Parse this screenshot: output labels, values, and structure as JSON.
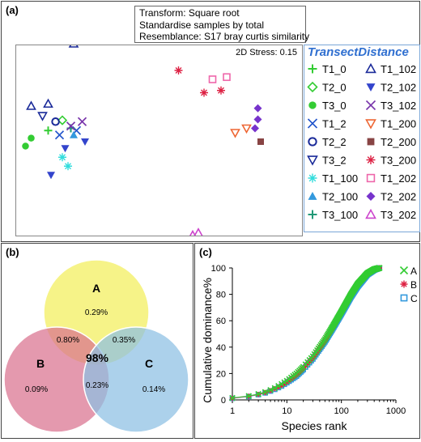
{
  "panels": {
    "a": {
      "label": "(a)",
      "info_lines": [
        "Transform: Square root",
        "Standardise samples by total",
        "Resemblance: S17 bray curtis similarity"
      ],
      "stress": "2D Stress: 0.15",
      "legend_title": "TransectDistance"
    },
    "b": {
      "label": "(b)",
      "sets": [
        {
          "name": "A",
          "color": "#f3ef5a",
          "value": "0.29%"
        },
        {
          "name": "B",
          "color": "#d9728f",
          "value": "0.09%"
        },
        {
          "name": "C",
          "color": "#8cbfe3",
          "value": "0.14%"
        }
      ],
      "intersections": {
        "AB": "0.80%",
        "AC": "0.35%",
        "BC": "0.23%",
        "ABC": "98%"
      }
    },
    "c": {
      "label": "(c)"
    }
  },
  "chart_data": [
    {
      "type": "scatter",
      "title": "2D Stress: 0.15",
      "legend_title": "TransectDistance",
      "legend_position": "right",
      "series": [
        {
          "name": "T1_0",
          "marker": "plus",
          "color": "#33cc33",
          "points": [
            [
              -1.95,
              0.05
            ]
          ]
        },
        {
          "name": "T2_0",
          "marker": "diamond-open",
          "color": "#33cc33",
          "points": [
            [
              -1.7,
              0.28
            ]
          ]
        },
        {
          "name": "T3_0",
          "marker": "circle-filled",
          "color": "#33cc33",
          "points": [
            [
              -2.35,
              -0.3
            ],
            [
              -2.25,
              -0.12
            ]
          ]
        },
        {
          "name": "T1_2",
          "marker": "x",
          "color": "#2255cc",
          "points": [
            [
              -1.75,
              -0.05
            ],
            [
              -1.45,
              0.05
            ]
          ]
        },
        {
          "name": "T2_2",
          "marker": "circle-open",
          "color": "#1a2a99",
          "points": [
            [
              -1.82,
              0.25
            ]
          ]
        },
        {
          "name": "T3_2",
          "marker": "triangle-down-open",
          "color": "#1a2a99",
          "points": [
            [
              -2.05,
              0.38
            ]
          ]
        },
        {
          "name": "T1_100",
          "marker": "asterisk",
          "color": "#33dddd",
          "points": [
            [
              -1.7,
              -0.55
            ],
            [
              -1.6,
              -0.75
            ]
          ]
        },
        {
          "name": "T2_100",
          "marker": "triangle-filled",
          "color": "#3399dd",
          "points": [
            [
              -1.5,
              -0.05
            ]
          ]
        },
        {
          "name": "T3_100",
          "marker": "plus",
          "color": "#229977",
          "points": [
            [
              -1.55,
              0.1
            ]
          ]
        },
        {
          "name": "T1_102",
          "marker": "triangle-open",
          "color": "#1a2a99",
          "points": [
            [
              -1.5,
              2.0
            ],
            [
              -1.95,
              0.65
            ],
            [
              -2.25,
              0.6
            ]
          ]
        },
        {
          "name": "T2_102",
          "marker": "triangle-down-filled",
          "color": "#3344cc",
          "points": [
            [
              -1.65,
              -0.35
            ],
            [
              -1.9,
              -0.95
            ],
            [
              -1.3,
              -0.2
            ]
          ]
        },
        {
          "name": "T3_102",
          "marker": "x",
          "color": "#7733aa",
          "points": [
            [
              -1.55,
              0.15
            ],
            [
              -1.35,
              0.25
            ]
          ]
        },
        {
          "name": "T1_200",
          "marker": "triangle-down-open",
          "color": "#ee6633",
          "points": [
            [
              1.55,
              0.1
            ],
            [
              1.35,
              0.0
            ]
          ]
        },
        {
          "name": "T2_200",
          "marker": "square-filled",
          "color": "#884444",
          "points": [
            [
              1.8,
              -0.2
            ]
          ]
        },
        {
          "name": "T3_200",
          "marker": "asterisk",
          "color": "#dd2244",
          "points": [
            [
              0.35,
              1.4
            ],
            [
              0.8,
              0.9
            ],
            [
              1.1,
              0.95
            ]
          ]
        },
        {
          "name": "T1_202",
          "marker": "square-open",
          "color": "#ee66aa",
          "points": [
            [
              0.95,
              1.2
            ],
            [
              1.2,
              1.25
            ]
          ]
        },
        {
          "name": "T2_202",
          "marker": "diamond-filled",
          "color": "#7733cc",
          "points": [
            [
              1.75,
              0.55
            ],
            [
              1.75,
              0.3
            ],
            [
              1.7,
              0.1
            ]
          ]
        },
        {
          "name": "T3_202",
          "marker": "triangle-open",
          "color": "#cc44cc",
          "points": [
            [
              0.6,
              -2.3
            ],
            [
              0.7,
              -2.25
            ]
          ]
        }
      ]
    },
    {
      "type": "venn",
      "sets": [
        "A",
        "B",
        "C"
      ],
      "only": {
        "A": 0.29,
        "B": 0.09,
        "C": 0.14
      },
      "pairs": {
        "AB": 0.8,
        "AC": 0.35,
        "BC": 0.23
      },
      "all": 98,
      "unit": "%"
    },
    {
      "type": "line",
      "xlabel": "Species rank",
      "ylabel": "Cumulative dominance%",
      "xscale": "log",
      "xlim": [
        1,
        1000
      ],
      "ylim": [
        0,
        100
      ],
      "xticks": [
        "1",
        "10",
        "100",
        "1000"
      ],
      "yticks": [
        "0",
        "20",
        "40",
        "60",
        "80",
        "100"
      ],
      "legend_position": "right",
      "series": [
        {
          "name": "A",
          "marker": "x",
          "color": "#33cc33",
          "x": [
            1,
            2,
            3,
            4,
            5,
            6,
            8,
            10,
            15,
            20,
            30,
            50,
            70,
            100,
            150,
            200,
            300,
            400,
            500
          ],
          "y": [
            1.5,
            3,
            4.5,
            6,
            7.5,
            9,
            12,
            14.5,
            20,
            25,
            33,
            46,
            56,
            67,
            80,
            88,
            96,
            99,
            100
          ]
        },
        {
          "name": "B",
          "marker": "asterisk",
          "color": "#dd2244",
          "x": [
            1,
            2,
            3,
            4,
            5,
            6,
            8,
            10,
            15,
            20,
            30,
            50,
            70,
            100,
            150,
            200,
            300,
            400,
            500
          ],
          "y": [
            1.3,
            2.8,
            4.2,
            5.6,
            7,
            8.5,
            11,
            13.5,
            19,
            24,
            32,
            45,
            55,
            66,
            79,
            87,
            95,
            99,
            100
          ]
        },
        {
          "name": "C",
          "marker": "square-open",
          "color": "#3399dd",
          "x": [
            1,
            2,
            3,
            4,
            5,
            6,
            8,
            10,
            15,
            20,
            30,
            50,
            70,
            100,
            150,
            200,
            300,
            400,
            500
          ],
          "y": [
            1.2,
            2.6,
            4,
            5.3,
            6.7,
            8,
            10.5,
            13,
            18,
            23,
            31,
            44,
            54,
            65,
            78,
            86,
            95,
            98.5,
            100
          ]
        }
      ]
    }
  ]
}
